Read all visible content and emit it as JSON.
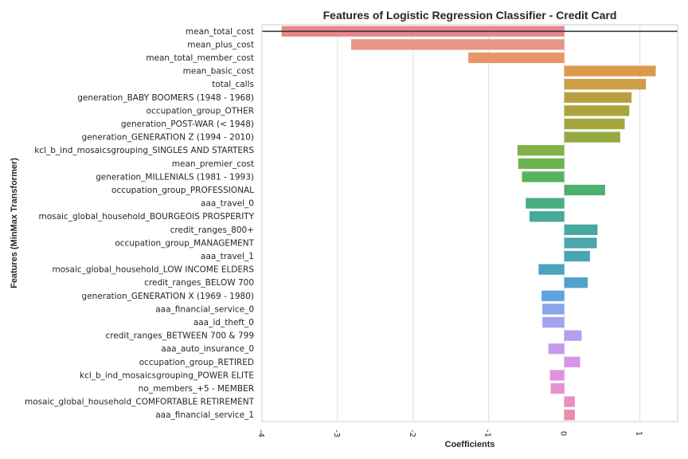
{
  "chart_data": {
    "type": "bar",
    "orientation": "horizontal",
    "title": "Features of Logistic Regression Classifier - Credit Card",
    "xlabel": "Coefficients",
    "ylabel": "Features (MinMax Transformer)",
    "xlim": [
      -4,
      1.5
    ],
    "xticks": [
      -4,
      -3,
      -2,
      -1,
      0,
      1
    ],
    "xtick_labels": [
      "-4",
      "-3",
      "-2",
      "-1",
      "0",
      "1"
    ],
    "grid": "vertical",
    "categories": [
      "mean_total_cost",
      "mean_plus_cost",
      "mean_total_member_cost",
      "mean_basic_cost",
      "total_calls",
      "generation_BABY BOOMERS (1948 - 1968)",
      "occupation_group_OTHER",
      "generation_POST-WAR (< 1948)",
      "generation_GENERATION Z (1994 - 2010)",
      "kcl_b_ind_mosaicsgrouping_SINGLES AND STARTERS",
      "mean_premier_cost",
      "generation_MILLENIALS (1981 - 1993)",
      "occupation_group_PROFESSIONAL",
      "aaa_travel_0",
      "mosaic_global_household_BOURGEOIS PROSPERITY",
      "credit_ranges_800+",
      "occupation_group_MANAGEMENT",
      "aaa_travel_1",
      "mosaic_global_household_LOW INCOME ELDERS",
      "credit_ranges_BELOW 700",
      "generation_GENERATION X (1969 - 1980)",
      "aaa_financial_service_0",
      "aaa_id_theft_0",
      "credit_ranges_BETWEEN 700 & 799",
      "aaa_auto_insurance_0",
      "occupation_group_RETIRED",
      "kcl_b_ind_mosaicsgrouping_POWER ELITE",
      "no_members_+5 - MEMBER",
      "mosaic_global_household_COMFORTABLE RETIREMENT",
      "aaa_financial_service_1"
    ],
    "values": [
      -3.74,
      -2.82,
      -1.27,
      1.21,
      1.08,
      0.89,
      0.86,
      0.8,
      0.74,
      -0.62,
      -0.61,
      -0.56,
      0.54,
      -0.51,
      -0.46,
      0.44,
      0.43,
      0.34,
      -0.34,
      0.31,
      -0.3,
      -0.29,
      -0.29,
      0.23,
      -0.21,
      0.21,
      -0.19,
      -0.18,
      0.14,
      0.14
    ],
    "colors": [
      "#e8868c",
      "#e99586",
      "#e8956a",
      "#dc9a4a",
      "#cc9e45",
      "#b8a03f",
      "#aba33c",
      "#a2a83d",
      "#94ab3f",
      "#80b24a",
      "#6db34d",
      "#58b35c",
      "#4eb06e",
      "#4aae84",
      "#48aa96",
      "#49a8a2",
      "#4aa6aa",
      "#4aa4b2",
      "#4aa3bd",
      "#4fa2cc",
      "#5fa3e2",
      "#8aa4ea",
      "#a4a3ec",
      "#b89feb",
      "#c69bea",
      "#d497e7",
      "#df93de",
      "#e691d0",
      "#e78fc2",
      "#e88eb2"
    ]
  }
}
